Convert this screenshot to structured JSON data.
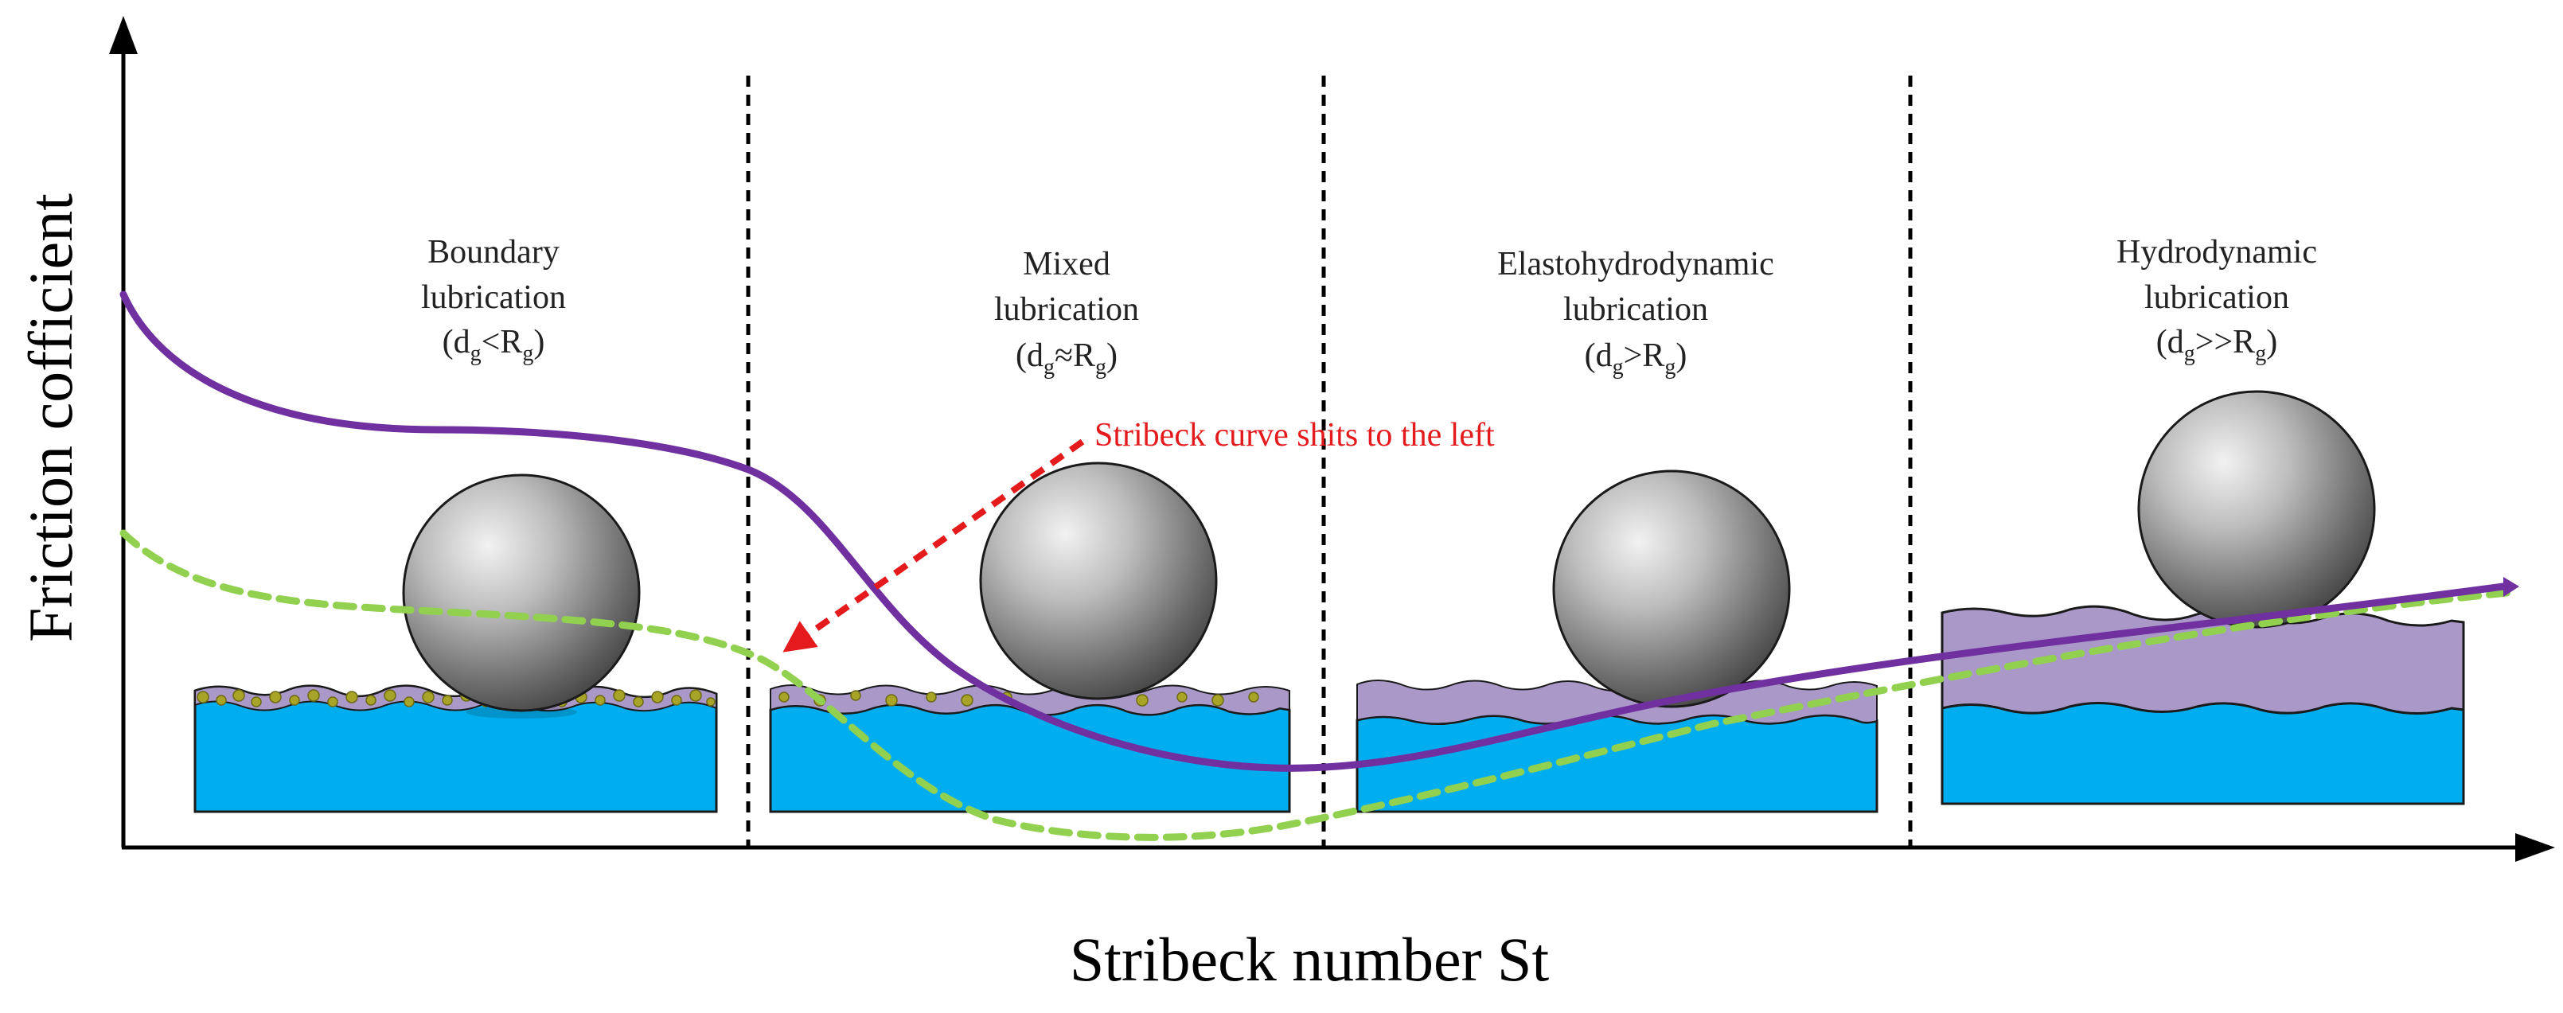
{
  "axes": {
    "x_label": "Stribeck number St",
    "y_label": "Friction cofficient"
  },
  "regions": [
    {
      "id": "boundary",
      "lines": [
        "Boundary",
        "lubrication"
      ],
      "cond_d": "d",
      "cond_sub": "g",
      "cond_op": "<",
      "cond_r": "R",
      "cond_rsub": "g",
      "cond_close": ")"
    },
    {
      "id": "mixed",
      "lines": [
        "Mixed",
        "lubrication"
      ],
      "cond_d": "d",
      "cond_sub": "g",
      "cond_op": "≈",
      "cond_r": "R",
      "cond_rsub": "g",
      "cond_close": ")"
    },
    {
      "id": "elastohydrodynamic",
      "lines": [
        "Elastohydrodynamic",
        "lubrication"
      ],
      "cond_d": "d",
      "cond_sub": "g",
      "cond_op": ">",
      "cond_r": "R",
      "cond_rsub": "g",
      "cond_close": ")"
    },
    {
      "id": "hydrodynamic",
      "lines": [
        "Hydrodynamic",
        "lubrication"
      ],
      "cond_d": "d",
      "cond_sub": "g",
      "cond_op": ">>",
      "cond_r": "R",
      "cond_rsub": "g",
      "cond_close": ")"
    }
  ],
  "annotation": {
    "text": "Stribeck curve shits to the left",
    "color": "#e41a1c"
  },
  "colors": {
    "substrate": "#00aeef",
    "lubricant": "#a998c8",
    "particles": "#a7a427",
    "curve_primary": "#7030a0",
    "curve_shifted": "#92d050",
    "divider": "#000000"
  }
}
